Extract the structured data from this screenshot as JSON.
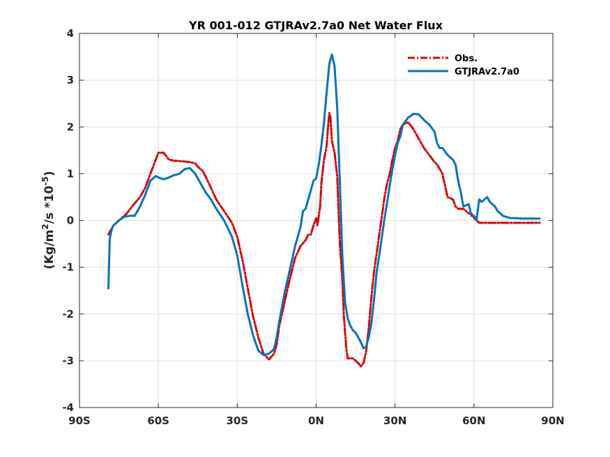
{
  "chart_data": {
    "type": "line",
    "title": "YR 001-012 GTJRAv2.7a0  Net Water Flux",
    "ylabel": {
      "prefix": "(Kg/m",
      "sup1": "2",
      "middle": "/s *10",
      "sup2": "-5",
      "suffix": ")"
    },
    "xlabel": "",
    "xlim": [
      -90,
      90
    ],
    "ylim": [
      -4,
      4
    ],
    "x_ticks": [
      -90,
      -60,
      -30,
      0,
      30,
      60,
      90
    ],
    "x_tick_labels": [
      "90S",
      "60S",
      "30S",
      "0N",
      "30N",
      "60N",
      "90N"
    ],
    "y_ticks": [
      -4,
      -3,
      -2,
      -1,
      0,
      1,
      2,
      3,
      4
    ],
    "y_tick_labels": [
      "-4",
      "-3",
      "-2",
      "-1",
      "0",
      "1",
      "2",
      "3",
      "4"
    ],
    "grid": true,
    "legend_position": "top-right",
    "series": [
      {
        "name": "Obs.",
        "color": "#dd0000",
        "style": "dash-dot",
        "x": [
          -79,
          -77,
          -75,
          -72,
          -70,
          -67,
          -65,
          -63,
          -61,
          -60,
          -58,
          -56,
          -54,
          -52,
          -50,
          -48,
          -46,
          -45,
          -43,
          -40,
          -38,
          -35,
          -32,
          -30,
          -28,
          -26,
          -24,
          -22,
          -20,
          -18,
          -16,
          -15,
          -14,
          -12,
          -10,
          -8,
          -6,
          -4,
          -3,
          -2,
          -1,
          0,
          0.5,
          1,
          1.5,
          2,
          3,
          4,
          4.5,
          5,
          5.5,
          6,
          7,
          8,
          9,
          10,
          10.5,
          11,
          11.5,
          12,
          13,
          14,
          15,
          16,
          17,
          18,
          19,
          20,
          21,
          22,
          23,
          24,
          25,
          26,
          27,
          28,
          29,
          30,
          31,
          32,
          33,
          35,
          37,
          39,
          41,
          43,
          45,
          46,
          47,
          48,
          50,
          52,
          53,
          54,
          56,
          58,
          59,
          60,
          61,
          62,
          63,
          64,
          65,
          66,
          68,
          70,
          72,
          74,
          76,
          78,
          80,
          82,
          85
        ],
        "y": [
          -0.3,
          -0.1,
          0.0,
          0.15,
          0.3,
          0.5,
          0.7,
          1.0,
          1.3,
          1.45,
          1.45,
          1.3,
          1.28,
          1.27,
          1.26,
          1.25,
          1.22,
          1.15,
          1.05,
          0.7,
          0.45,
          0.2,
          -0.05,
          -0.35,
          -0.85,
          -1.45,
          -2.05,
          -2.5,
          -2.85,
          -2.97,
          -2.85,
          -2.65,
          -2.25,
          -1.75,
          -1.25,
          -0.8,
          -0.55,
          -0.42,
          -0.3,
          -0.3,
          -0.1,
          0.05,
          -0.1,
          0.1,
          0.3,
          0.8,
          1.3,
          1.6,
          2.0,
          2.3,
          2.2,
          1.7,
          1.45,
          0.95,
          -0.5,
          -1.3,
          -2.0,
          -2.4,
          -2.75,
          -2.95,
          -2.95,
          -2.95,
          -3.0,
          -3.05,
          -3.12,
          -3.05,
          -2.8,
          -2.3,
          -1.65,
          -1.1,
          -0.7,
          -0.3,
          0.1,
          0.5,
          0.8,
          1.0,
          1.3,
          1.55,
          1.7,
          1.95,
          2.05,
          2.1,
          1.95,
          1.75,
          1.55,
          1.4,
          1.25,
          1.2,
          1.1,
          1.0,
          0.5,
          0.45,
          0.3,
          0.25,
          0.25,
          0.15,
          0.15,
          0.05,
          -0.0,
          -0.05,
          -0.05,
          -0.05,
          -0.05,
          -0.05,
          -0.05,
          -0.05,
          -0.05,
          -0.05,
          -0.05,
          -0.05,
          -0.05,
          -0.05,
          -0.05
        ],
        "x_dummy_note": ""
      },
      {
        "name": "GTJRAv2.7a0",
        "color": "#0072bd",
        "style": "solid",
        "x": [
          -79,
          -78.5,
          -78,
          -77.5,
          -77,
          -75,
          -73,
          -71,
          -69,
          -67,
          -65,
          -63,
          -61,
          -60,
          -58,
          -56,
          -54,
          -52,
          -50,
          -48,
          -46,
          -44,
          -42,
          -40,
          -38,
          -35,
          -32,
          -30,
          -28,
          -26,
          -24,
          -22,
          -20,
          -18,
          -16,
          -15,
          -14,
          -12,
          -10,
          -8,
          -6,
          -5,
          -4,
          -3,
          -2,
          -1,
          0,
          1,
          2,
          3,
          4,
          5,
          6,
          7,
          8,
          9,
          10,
          11,
          12,
          13,
          14,
          15,
          16,
          17,
          18,
          19,
          20,
          21,
          22,
          23,
          24,
          25,
          26,
          27,
          28,
          29,
          30,
          31,
          32,
          33,
          35,
          37,
          39,
          41,
          43,
          45,
          46,
          47,
          48,
          50,
          52,
          53,
          54,
          55,
          56,
          58,
          59,
          60,
          61,
          62,
          63,
          64,
          65,
          66,
          67,
          68,
          69,
          70,
          71,
          72,
          74,
          76,
          78,
          80,
          82,
          85
        ],
        "y": [
          -1.45,
          -0.4,
          -0.25,
          -0.15,
          -0.1,
          0.0,
          0.08,
          0.1,
          0.1,
          0.3,
          0.55,
          0.85,
          0.95,
          0.92,
          0.88,
          0.92,
          0.97,
          1.0,
          1.1,
          1.12,
          1.0,
          0.8,
          0.6,
          0.45,
          0.25,
          0.0,
          -0.35,
          -0.75,
          -1.4,
          -2.0,
          -2.45,
          -2.78,
          -2.88,
          -2.85,
          -2.75,
          -2.5,
          -2.15,
          -1.55,
          -1.05,
          -0.55,
          -0.15,
          0.2,
          0.25,
          0.45,
          0.65,
          0.85,
          0.9,
          1.2,
          1.6,
          2.1,
          2.75,
          3.35,
          3.55,
          3.3,
          2.4,
          0.8,
          -0.8,
          -1.75,
          -2.1,
          -2.25,
          -2.35,
          -2.4,
          -2.5,
          -2.6,
          -2.73,
          -2.7,
          -2.5,
          -2.2,
          -1.7,
          -1.1,
          -0.75,
          -0.35,
          0.05,
          0.4,
          0.75,
          1.1,
          1.4,
          1.65,
          1.8,
          2.05,
          2.2,
          2.28,
          2.27,
          2.15,
          2.05,
          1.9,
          1.65,
          1.55,
          1.55,
          1.4,
          1.3,
          1.2,
          0.85,
          0.6,
          0.3,
          0.35,
          0.1,
          0.1,
          0.02,
          0.45,
          0.4,
          0.45,
          0.5,
          0.4,
          0.35,
          0.3,
          0.2,
          0.15,
          0.1,
          0.08,
          0.05,
          0.05,
          0.04,
          0.04,
          0.04,
          0.04
        ]
      }
    ]
  }
}
